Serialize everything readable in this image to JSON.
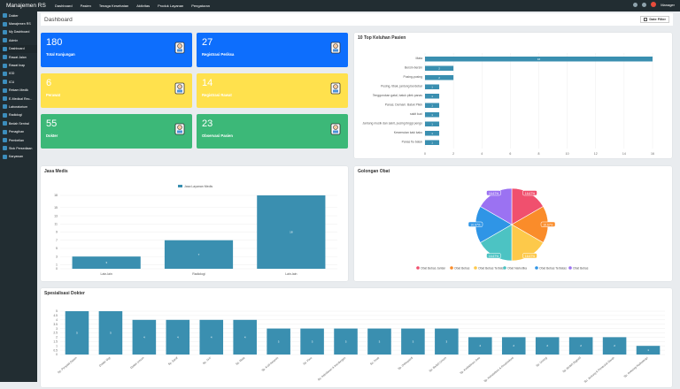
{
  "app": {
    "title": "Manajemen RS"
  },
  "topnav": [
    "Dashboard",
    "Pasien",
    "Tenaga Kesehatan",
    "Aktivitas",
    "Produk Layanan",
    "Pengaturan"
  ],
  "user": {
    "name": "Manager"
  },
  "sidebar": [
    "Dokter",
    "Manajemen RS",
    "My Dashboard",
    "Admin",
    "Dashboard",
    "Rawat Jalan",
    "Rawat Inap",
    "IGD",
    "ICU",
    "Rekam Medik",
    "E-Medical Rec...",
    "Laboratorium",
    "Radiologi",
    "Bedah Sentral",
    "Penagihan",
    "Pembelian",
    "Stok Persediaan",
    "Karyawan"
  ],
  "page": {
    "title": "Dashboard",
    "date_filter": "Date Filter"
  },
  "cards": [
    {
      "num": "180",
      "label": "Total Kunjungan",
      "color": "#0d6efd"
    },
    {
      "num": "27",
      "label": "Registrasi Periksa",
      "color": "#0d6efd"
    },
    {
      "num": "6",
      "label": "Perawat",
      "color": "#ffe14d"
    },
    {
      "num": "14",
      "label": "Registrasi Rawat",
      "color": "#ffe14d"
    },
    {
      "num": "55",
      "label": "Dokter",
      "color": "#3cb878"
    },
    {
      "num": "23",
      "label": "Observasi Pasien",
      "color": "#3cb878"
    }
  ],
  "complaints": {
    "title": "10 Top Keluhan Pasien",
    "chart_data": {
      "type": "bar",
      "orientation": "horizontal",
      "categories": [
        "Mata",
        "Bersin-bersin",
        "Pusing-pusing",
        "Pusing, tibak, jantung berdebar",
        "Tenggorokan gatal, batuk pilek panas",
        "Panas. Demam. Batuk Pilek",
        "sakit kuci",
        "Jantung musik dan sakit, pusing tinggi pengo",
        "Kesemutan kaki kaku",
        "Panas flu batuk"
      ],
      "values": [
        16,
        2,
        2,
        1,
        1,
        1,
        1,
        1,
        1,
        1
      ],
      "xlim": [
        0,
        16
      ],
      "xticks": [
        0,
        2,
        4,
        6,
        8,
        10,
        12,
        14,
        16
      ]
    }
  },
  "jasa": {
    "title": "Jasa Medis",
    "chart_data": {
      "type": "bar",
      "categories": [
        "Lain-lain",
        "Radiologi",
        "Lain-lain"
      ],
      "values": [
        3,
        7,
        18
      ],
      "legend": "Jasa Layanan Medis",
      "ylim": [
        0,
        18
      ],
      "yticks": [
        0,
        1,
        3,
        5,
        7,
        9,
        11,
        13,
        15,
        18
      ]
    }
  },
  "golongan": {
    "title": "Golongan Obat",
    "chart_data": {
      "type": "pie",
      "labels": [
        "Obat Bebas Jantan",
        "Obat Bebas",
        "Obat Bebas Terbatas",
        "Obat Narkotika",
        "Obat Bebas Terbatas",
        "Obat Bebas"
      ],
      "values": [
        16.67,
        16.67,
        16.67,
        16.67,
        16.67,
        16.67
      ],
      "data_labels": [
        "16.67%",
        "16.67%",
        "16.67%",
        "16.67%",
        "16.67%",
        "16.67%"
      ],
      "colors": [
        "#f0506e",
        "#fa8c2a",
        "#fdc94a",
        "#4cc3c3",
        "#2f95e6",
        "#9b72f2"
      ]
    }
  },
  "spesialis": {
    "title": "Spesialisasi Dokter",
    "chart_data": {
      "type": "bar",
      "categories": [
        "Sp. Penyakit Dalam",
        "Dokter Gigi",
        "Dokter Umum",
        "Sp. Saraf",
        "Sp. THT",
        "Sp. Mata",
        "Sp. Kulit Kelamin",
        "Sp. Paru",
        "Sp. Kebidanan & Kandungan",
        "Sp. Anak",
        "Sp. Orthopaedi",
        "Sp. Bedah Umum",
        "Sp. Kedokteran Jiwa",
        "Sp. Rehabilitasi & Prosthodonti",
        "Sp. Urologi",
        "Sp. Bedah Digestif",
        "Sp. Jantung & Pembuluh Darah",
        "Sp. Onkologi Radioterapi"
      ],
      "values": [
        5,
        5,
        4,
        4,
        4,
        4,
        3,
        3,
        3,
        3,
        3,
        3,
        2,
        2,
        2,
        2,
        2,
        1
      ],
      "ylim": [
        0,
        5
      ],
      "yticks": [
        0,
        0.5,
        1,
        1.5,
        2,
        2.5,
        3,
        3.5,
        4,
        4.5,
        5
      ]
    }
  }
}
